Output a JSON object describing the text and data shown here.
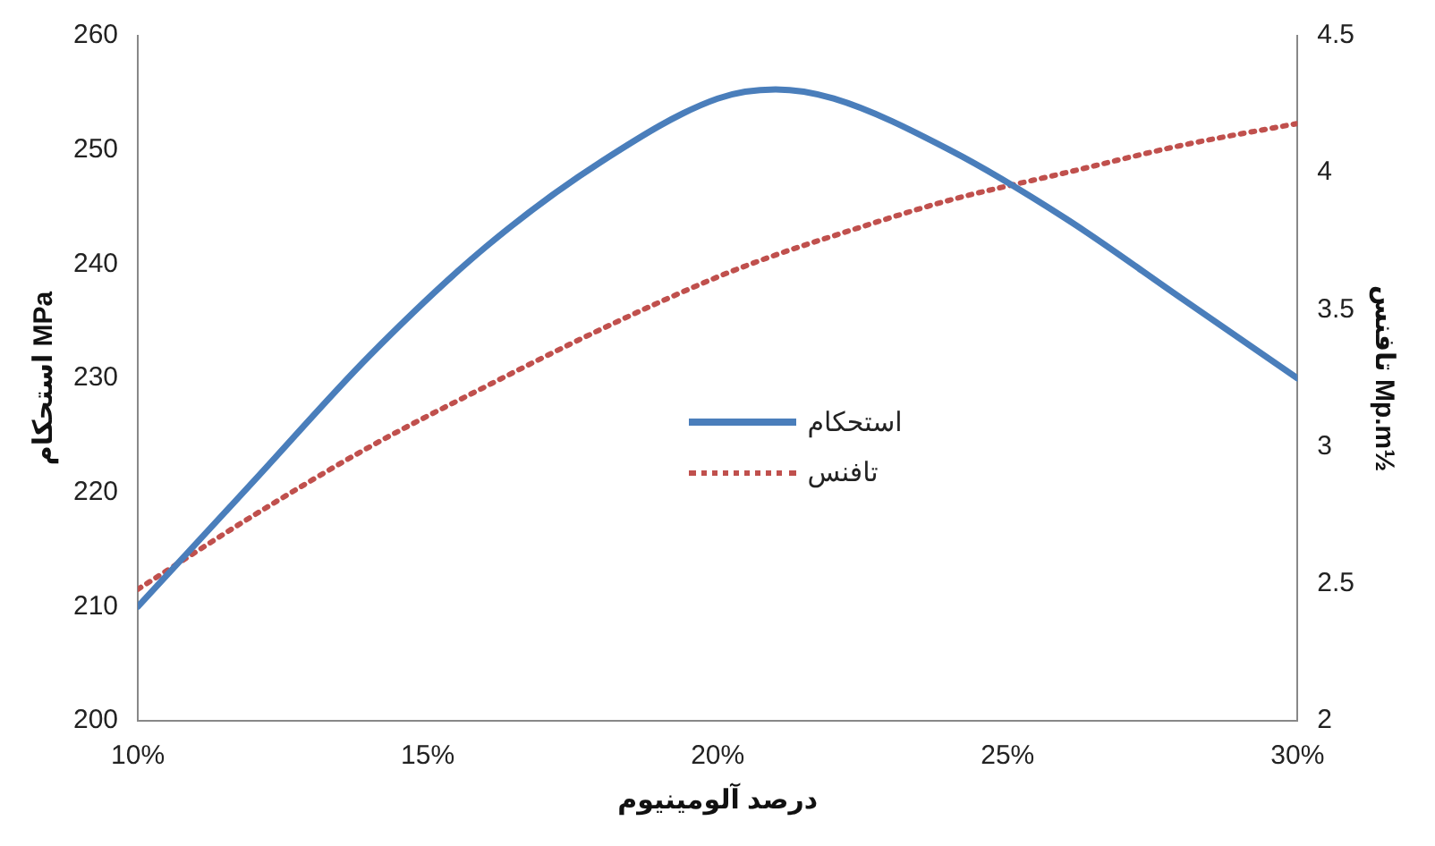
{
  "chart_data": {
    "type": "line",
    "xlabel": "درصد آلومینیوم",
    "ylabel": "استحکام MPa",
    "y2label": "تافنس Mp.m½",
    "x": [
      10,
      12,
      14,
      16,
      18,
      20,
      21,
      22,
      24,
      26,
      28,
      30
    ],
    "series": [
      {
        "name": "استحکام",
        "color": "#4a7ebb",
        "axis": "y",
        "line_style": "solid",
        "values": [
          210,
          221,
          232,
          241.5,
          249,
          254.5,
          255.3,
          254.5,
          250,
          244,
          237,
          230
        ]
      },
      {
        "name": "تافنس",
        "color": "#c0504d",
        "axis": "y2",
        "line_style": "dotted",
        "values": [
          2.48,
          2.75,
          3.0,
          3.22,
          3.43,
          3.62,
          3.7,
          3.77,
          3.9,
          4.0,
          4.1,
          4.18
        ]
      }
    ],
    "xlim": [
      10,
      30
    ],
    "xticks": [
      {
        "value": 10,
        "label": "10%"
      },
      {
        "value": 15,
        "label": "15%"
      },
      {
        "value": 20,
        "label": "20%"
      },
      {
        "value": 25,
        "label": "25%"
      },
      {
        "value": 30,
        "label": "30%"
      }
    ],
    "ylim": [
      200,
      260
    ],
    "yticks": [
      200,
      210,
      220,
      230,
      240,
      250,
      260
    ],
    "y2lim": [
      2,
      4.5
    ],
    "y2ticks": [
      2,
      2.5,
      3,
      3.5,
      4,
      4.5
    ],
    "grid": false,
    "legend": "center",
    "marker": "none"
  }
}
